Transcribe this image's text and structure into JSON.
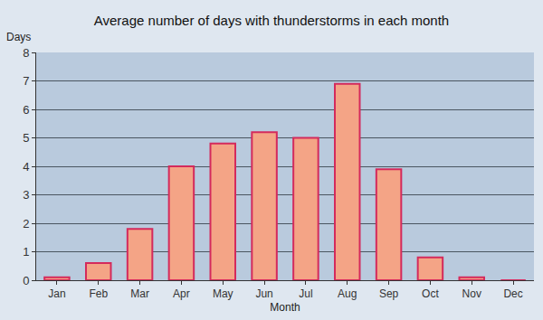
{
  "chart_data": {
    "type": "bar",
    "title": "Average number of days with thunderstorms in each month",
    "x_label": "Month",
    "y_label": "Days",
    "categories": [
      "Jan",
      "Feb",
      "Mar",
      "Apr",
      "May",
      "Jun",
      "Jul",
      "Aug",
      "Sep",
      "Oct",
      "Nov",
      "Dec"
    ],
    "values": [
      0.1,
      0.6,
      1.8,
      4.0,
      4.8,
      5.2,
      5.0,
      6.9,
      3.9,
      0.8,
      0.1,
      0
    ],
    "color": "#f4a486",
    "ylim": [
      0,
      8
    ],
    "yticks": [
      0,
      1,
      2,
      3,
      4,
      5,
      6,
      7,
      8
    ],
    "grid": true
  }
}
